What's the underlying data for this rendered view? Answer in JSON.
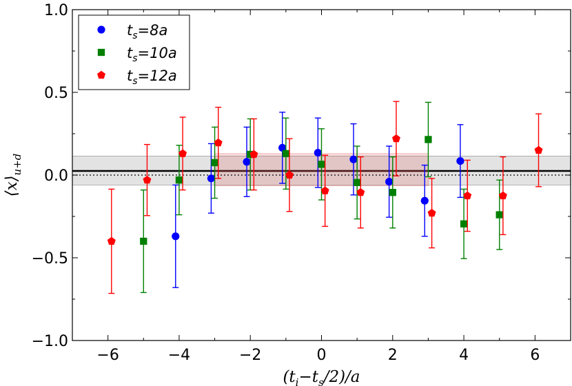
{
  "chart_data": {
    "type": "scatter",
    "title": "",
    "xlabel": "(t_i−t_s/2)/a",
    "ylabel": "⟨x⟩_{u+d}",
    "xlim": [
      -7,
      7
    ],
    "ylim": [
      -1.0,
      1.0
    ],
    "xticks": [
      -6,
      -4,
      -2,
      0,
      2,
      4,
      6
    ],
    "xtick_labels": [
      "−6",
      "−4",
      "−2",
      "0",
      "2",
      "4",
      "6"
    ],
    "yticks": [
      -1.0,
      -0.5,
      0.0,
      0.5,
      1.0
    ],
    "ytick_labels": [
      "−1.0",
      "−0.5",
      "0.0",
      "0.5",
      "1.0"
    ],
    "grid": false,
    "legend_position": "top-left",
    "reference_line": {
      "value": 0.0,
      "style": "dotted"
    },
    "fit": {
      "value": 0.025,
      "band": [
        -0.06,
        0.115
      ],
      "x_range": [
        -7,
        7
      ]
    },
    "fit_inner_band": {
      "band": [
        -0.065,
        0.13
      ],
      "x_range": [
        -3,
        3
      ]
    },
    "series": [
      {
        "name": "ts=8a",
        "label_base": "t",
        "label_sub": "s",
        "label_rest": "=8a",
        "color": "#0000ff",
        "marker": "circle",
        "points": [
          {
            "x": -4,
            "y": -0.37,
            "yerr": 0.31
          },
          {
            "x": -3,
            "y": -0.02,
            "yerr": 0.21
          },
          {
            "x": -2,
            "y": 0.08,
            "yerr": 0.21
          },
          {
            "x": -1,
            "y": 0.165,
            "yerr": 0.215
          },
          {
            "x": 0,
            "y": 0.135,
            "yerr": 0.21
          },
          {
            "x": 1,
            "y": 0.095,
            "yerr": 0.215
          },
          {
            "x": 2,
            "y": -0.04,
            "yerr": 0.215
          },
          {
            "x": 3,
            "y": -0.155,
            "yerr": 0.215
          },
          {
            "x": 4,
            "y": 0.085,
            "yerr": 0.22
          }
        ]
      },
      {
        "name": "ts=10a",
        "label_base": "t",
        "label_sub": "s",
        "label_rest": "=10a",
        "color": "#008000",
        "marker": "square",
        "points": [
          {
            "x": -5,
            "y": -0.4,
            "yerr": 0.31
          },
          {
            "x": -4,
            "y": -0.03,
            "yerr": 0.21
          },
          {
            "x": -3,
            "y": 0.075,
            "yerr": 0.215
          },
          {
            "x": -2,
            "y": 0.125,
            "yerr": 0.215
          },
          {
            "x": -1,
            "y": 0.13,
            "yerr": 0.215
          },
          {
            "x": 0,
            "y": 0.065,
            "yerr": 0.215
          },
          {
            "x": 1,
            "y": -0.045,
            "yerr": 0.22
          },
          {
            "x": 2,
            "y": -0.105,
            "yerr": 0.215
          },
          {
            "x": 3,
            "y": 0.215,
            "yerr": 0.225
          },
          {
            "x": 4,
            "y": -0.295,
            "yerr": 0.21
          },
          {
            "x": 5,
            "y": -0.24,
            "yerr": 0.21
          }
        ]
      },
      {
        "name": "ts=12a",
        "label_base": "t",
        "label_sub": "s",
        "label_rest": "=12a",
        "color": "#ff0000",
        "marker": "pentagon",
        "points": [
          {
            "x": -6,
            "y": -0.4,
            "yerr": 0.315
          },
          {
            "x": -5,
            "y": -0.03,
            "yerr": 0.215
          },
          {
            "x": -4,
            "y": 0.13,
            "yerr": 0.22
          },
          {
            "x": -3,
            "y": 0.195,
            "yerr": 0.215
          },
          {
            "x": -2,
            "y": 0.125,
            "yerr": 0.215
          },
          {
            "x": -1,
            "y": 0.0,
            "yerr": 0.22
          },
          {
            "x": 0,
            "y": -0.095,
            "yerr": 0.215
          },
          {
            "x": 1,
            "y": -0.105,
            "yerr": 0.215
          },
          {
            "x": 2,
            "y": 0.22,
            "yerr": 0.225
          },
          {
            "x": 3,
            "y": -0.23,
            "yerr": 0.21
          },
          {
            "x": 4,
            "y": -0.125,
            "yerr": 0.215
          },
          {
            "x": 5,
            "y": -0.125,
            "yerr": 0.235
          },
          {
            "x": 6,
            "y": 0.15,
            "yerr": 0.22
          }
        ]
      }
    ]
  }
}
